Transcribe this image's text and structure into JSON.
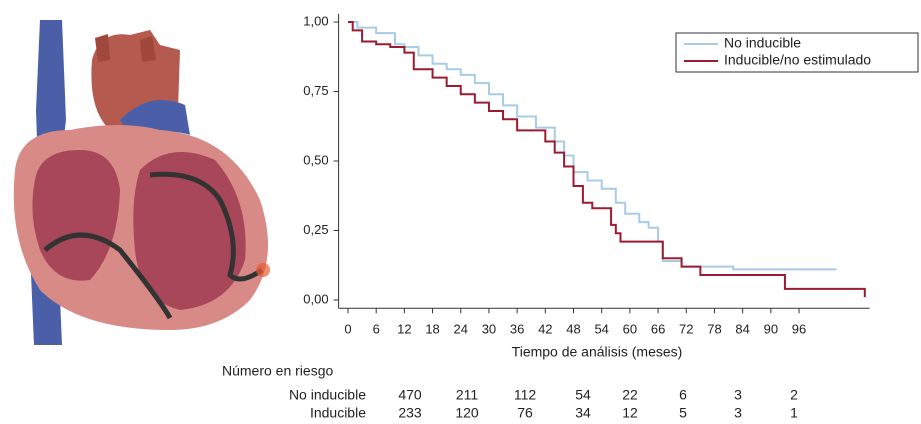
{
  "chart_data": {
    "type": "step",
    "xlabel": "Tiempo de análisis (meses)",
    "xlim": [
      -2,
      111
    ],
    "ylim": [
      -0.03,
      1.03
    ],
    "xticks": [
      0,
      6,
      12,
      18,
      24,
      30,
      36,
      42,
      48,
      54,
      60,
      66,
      72,
      78,
      84,
      90,
      96
    ],
    "yticks": [
      {
        "value": 0,
        "label": "0,00"
      },
      {
        "value": 0.25,
        "label": "0,25"
      },
      {
        "value": 0.5,
        "label": "0,50"
      },
      {
        "value": 0.75,
        "label": "0,75"
      },
      {
        "value": 1,
        "label": "1,00"
      }
    ],
    "legend": "upper right",
    "series": [
      {
        "name": "No inducible",
        "color": "#a8cbe8",
        "x": [
          0,
          2,
          2,
          6,
          6,
          10,
          10,
          12,
          12,
          15,
          15,
          18,
          18,
          21,
          21,
          24,
          24,
          27,
          27,
          30,
          30,
          33,
          33,
          36,
          36,
          40,
          40,
          44,
          44,
          46,
          46,
          48,
          48,
          51,
          51,
          54,
          54,
          57,
          57,
          59,
          59,
          62,
          62,
          64,
          64,
          66,
          66,
          67,
          67,
          71,
          71,
          82,
          82,
          104
        ],
        "values": [
          1,
          1,
          0.98,
          0.98,
          0.96,
          0.96,
          0.92,
          0.92,
          0.91,
          0.91,
          0.88,
          0.88,
          0.85,
          0.85,
          0.83,
          0.83,
          0.81,
          0.81,
          0.78,
          0.78,
          0.74,
          0.74,
          0.7,
          0.7,
          0.66,
          0.66,
          0.62,
          0.62,
          0.57,
          0.57,
          0.52,
          0.52,
          0.46,
          0.46,
          0.43,
          0.43,
          0.4,
          0.4,
          0.35,
          0.35,
          0.31,
          0.31,
          0.28,
          0.28,
          0.26,
          0.26,
          0.21,
          0.21,
          0.14,
          0.14,
          0.12,
          0.12,
          0.11,
          0.11
        ]
      },
      {
        "name": "Inducible/no estimulado",
        "color": "#9b1b30",
        "x": [
          0,
          1,
          1,
          3,
          3,
          6,
          6,
          9,
          9,
          12,
          12,
          14,
          14,
          18,
          18,
          21,
          21,
          24,
          24,
          27,
          27,
          30,
          30,
          33,
          33,
          36,
          36,
          42,
          42,
          44,
          44,
          46,
          46,
          48,
          48,
          50,
          50,
          52,
          52,
          56,
          56,
          57,
          57,
          58,
          58,
          67,
          67,
          71,
          71,
          75,
          75,
          93,
          93,
          110,
          110
        ],
        "values": [
          1,
          1,
          0.97,
          0.97,
          0.93,
          0.93,
          0.92,
          0.92,
          0.91,
          0.91,
          0.89,
          0.89,
          0.83,
          0.83,
          0.8,
          0.8,
          0.77,
          0.77,
          0.74,
          0.74,
          0.71,
          0.71,
          0.68,
          0.68,
          0.65,
          0.65,
          0.61,
          0.61,
          0.57,
          0.57,
          0.53,
          0.53,
          0.48,
          0.48,
          0.41,
          0.41,
          0.35,
          0.35,
          0.33,
          0.33,
          0.27,
          0.27,
          0.24,
          0.24,
          0.21,
          0.21,
          0.15,
          0.15,
          0.12,
          0.12,
          0.09,
          0.09,
          0.04,
          0.04,
          0.01
        ]
      }
    ],
    "risk_table": {
      "title": "Número en riesgo",
      "rows": [
        {
          "label": "No inducible",
          "values": [
            470,
            211,
            112,
            54,
            22,
            6,
            3,
            2
          ]
        },
        {
          "label": "Inducible",
          "values": [
            233,
            120,
            76,
            34,
            12,
            5,
            3,
            1
          ]
        }
      ]
    }
  }
}
